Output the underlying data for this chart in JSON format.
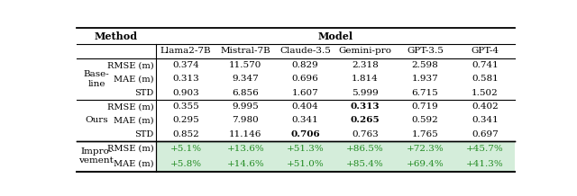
{
  "title": "Model",
  "col_headers": [
    "Llama2-7B",
    "Mistral-7B",
    "Claude-3.5",
    "Gemini-pro",
    "GPT-3.5",
    "GPT-4"
  ],
  "row_groups": [
    {
      "group_label": "Base-\nline",
      "metrics": [
        "RMSE (m)",
        "MAE (m)",
        "STD"
      ],
      "values": [
        [
          "0.374",
          "11.570",
          "0.829",
          "2.318",
          "2.598",
          "0.741"
        ],
        [
          "0.313",
          "9.347",
          "0.696",
          "1.814",
          "1.937",
          "0.581"
        ],
        [
          "0.903",
          "6.856",
          "1.607",
          "5.999",
          "6.715",
          "1.502"
        ]
      ],
      "bold": [
        [
          false,
          false,
          false,
          false,
          false,
          false
        ],
        [
          false,
          false,
          false,
          false,
          false,
          false
        ],
        [
          false,
          false,
          false,
          false,
          false,
          false
        ]
      ]
    },
    {
      "group_label": "Ours",
      "metrics": [
        "RMSE (m)",
        "MAE (m)",
        "STD"
      ],
      "values": [
        [
          "0.355",
          "9.995",
          "0.404",
          "0.313",
          "0.719",
          "0.402"
        ],
        [
          "0.295",
          "7.980",
          "0.341",
          "0.265",
          "0.592",
          "0.341"
        ],
        [
          "0.852",
          "11.146",
          "0.706",
          "0.763",
          "1.765",
          "0.697"
        ]
      ],
      "bold": [
        [
          false,
          false,
          false,
          true,
          false,
          false
        ],
        [
          false,
          false,
          false,
          true,
          false,
          false
        ],
        [
          false,
          false,
          true,
          false,
          false,
          false
        ]
      ]
    },
    {
      "group_label": "Impro-\nvement",
      "metrics": [
        "RMSE (m)",
        "MAE (m)"
      ],
      "values": [
        [
          "+5.1%",
          "+13.6%",
          "+51.3%",
          "+86.5%",
          "+72.3%",
          "+45.7%"
        ],
        [
          "+5.8%",
          "+14.6%",
          "+51.0%",
          "+85.4%",
          "+69.4%",
          "+41.3%"
        ]
      ],
      "bold": [
        [
          false,
          false,
          false,
          false,
          false,
          false
        ],
        [
          false,
          false,
          false,
          false,
          false,
          false
        ]
      ],
      "green": true
    }
  ],
  "bg_color_improvement": "#d4edda",
  "green_text_color": "#228B22",
  "figsize": [
    6.4,
    2.18
  ],
  "dpi": 100
}
